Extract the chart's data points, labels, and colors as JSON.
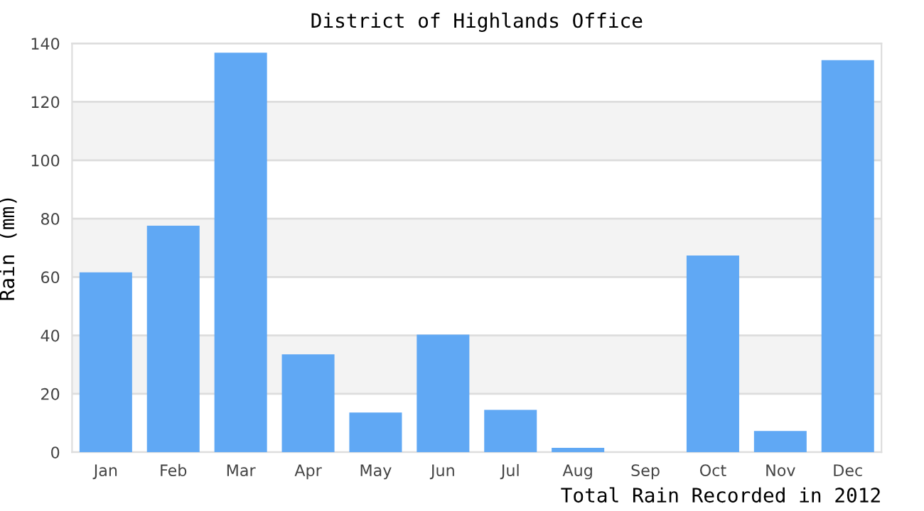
{
  "chart_data": {
    "type": "bar",
    "title": "District of Highlands Office",
    "xlabel": "Total Rain Recorded in 2012",
    "ylabel": "Rain (mm)",
    "categories": [
      "Jan",
      "Feb",
      "Mar",
      "Apr",
      "May",
      "Jun",
      "Jul",
      "Aug",
      "Sep",
      "Oct",
      "Nov",
      "Dec"
    ],
    "values": [
      61.6,
      77.6,
      136.8,
      33.5,
      13.6,
      40.3,
      14.5,
      1.5,
      0,
      67.4,
      7.3,
      134.3
    ],
    "color": "#60a8f4",
    "ylim": [
      0,
      140
    ],
    "yticks": [
      0,
      20,
      40,
      60,
      80,
      100,
      120,
      140
    ],
    "grid": "y",
    "bands": [
      {
        "axis": "y",
        "from": 20,
        "to": 40,
        "color": "#f3f3f3"
      },
      {
        "axis": "y",
        "from": 60,
        "to": 80,
        "color": "#f3f3f3"
      },
      {
        "axis": "y",
        "from": 100,
        "to": 120,
        "color": "#f3f3f3"
      }
    ]
  }
}
